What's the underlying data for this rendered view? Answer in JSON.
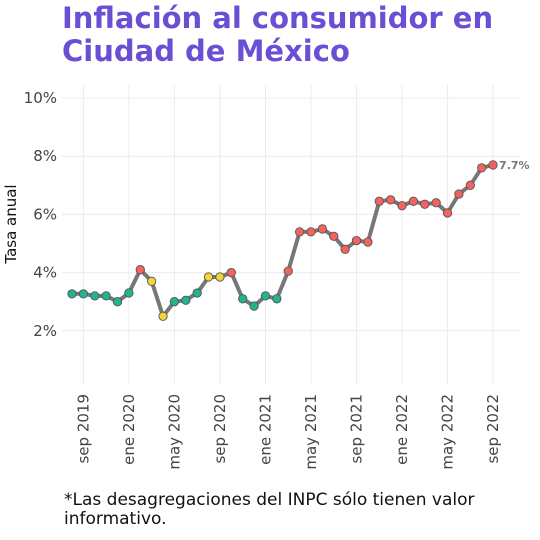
{
  "title": "Inflación al consumidor en Ciudad de México",
  "footnote": "*Las desagregaciones del INPC sólo tienen valor informativo.",
  "chart_data": {
    "type": "line",
    "title": "Inflación al consumidor en Ciudad de México",
    "xlabel": "",
    "ylabel": "Tasa anual",
    "ylim": [
      0,
      10
    ],
    "yticks": [
      2,
      4,
      6,
      8,
      10
    ],
    "ytick_labels": [
      "2%",
      "4%",
      "6%",
      "8%",
      "10%"
    ],
    "xticks": [
      "2019-09",
      "2020-01",
      "2020-05",
      "2020-09",
      "2021-01",
      "2021-05",
      "2021-09",
      "2022-01",
      "2022-05",
      "2022-09"
    ],
    "xtick_labels": [
      "sep 2019",
      "ene 2020",
      "may 2020",
      "sep 2020",
      "ene 2021",
      "may 2021",
      "sep 2021",
      "ene 2022",
      "may 2022",
      "sep 2022"
    ],
    "grid": true,
    "line_color": "#777777",
    "end_label": "7.7%",
    "colors": {
      "low": "#1fb58f",
      "mid": "#f0d43a",
      "high": "#f4625e"
    },
    "x": [
      "2019-08",
      "2019-09",
      "2019-10",
      "2019-11",
      "2019-12",
      "2020-01",
      "2020-02",
      "2020-03",
      "2020-04",
      "2020-05",
      "2020-06",
      "2020-07",
      "2020-08",
      "2020-09",
      "2020-10",
      "2020-11",
      "2020-12",
      "2021-01",
      "2021-02",
      "2021-03",
      "2021-04",
      "2021-05",
      "2021-06",
      "2021-07",
      "2021-08",
      "2021-09",
      "2021-10",
      "2021-11",
      "2021-12",
      "2022-01",
      "2022-02",
      "2022-03",
      "2022-04",
      "2022-05",
      "2022-06",
      "2022-07",
      "2022-08",
      "2022-09"
    ],
    "values": [
      3.27,
      3.27,
      3.2,
      3.2,
      3.0,
      3.3,
      4.1,
      3.7,
      2.5,
      3.0,
      3.05,
      3.3,
      3.85,
      3.85,
      4.0,
      3.1,
      2.85,
      3.2,
      3.1,
      4.05,
      5.4,
      5.4,
      5.5,
      5.25,
      4.8,
      5.1,
      5.05,
      6.45,
      6.5,
      6.3,
      6.45,
      6.35,
      6.4,
      6.05,
      6.7,
      7.0,
      7.6,
      7.7
    ],
    "point_colors": [
      "low",
      "low",
      "low",
      "low",
      "low",
      "low",
      "high",
      "mid",
      "mid",
      "low",
      "low",
      "low",
      "mid",
      "mid",
      "high",
      "low",
      "low",
      "low",
      "low",
      "high",
      "high",
      "high",
      "high",
      "high",
      "high",
      "high",
      "high",
      "high",
      "high",
      "high",
      "high",
      "high",
      "high",
      "high",
      "high",
      "high",
      "high",
      "high"
    ]
  }
}
